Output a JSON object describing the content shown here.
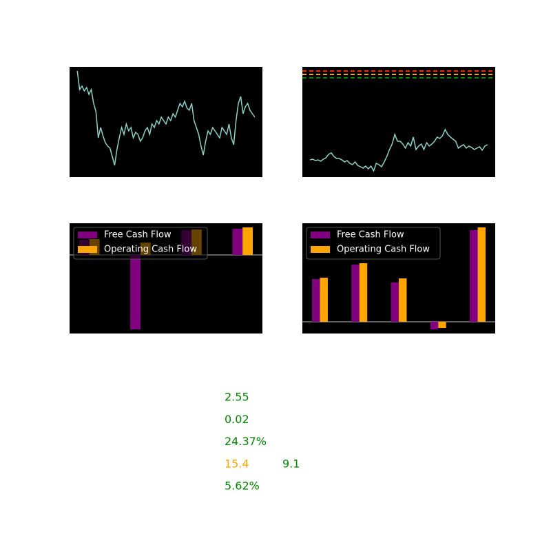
{
  "chart_data": [
    {
      "type": "line",
      "line_color": "#8dd3c7",
      "ylim": [
        0,
        160
      ],
      "values": [
        154,
        127,
        132,
        125,
        130,
        120,
        127,
        107,
        95,
        57,
        72,
        60,
        50,
        45,
        42,
        30,
        17,
        40,
        57,
        72,
        62,
        77,
        67,
        72,
        57,
        65,
        62,
        52,
        57,
        67,
        72,
        62,
        77,
        72,
        82,
        77,
        87,
        82,
        77,
        87,
        82,
        92,
        87,
        97,
        107,
        102,
        110,
        100,
        97,
        107,
        82,
        72,
        62,
        45,
        32,
        52,
        67,
        62,
        72,
        67,
        62,
        57,
        72,
        67,
        62,
        77,
        57,
        47,
        82,
        107,
        117,
        92,
        102,
        107,
        97,
        92,
        87
      ]
    },
    {
      "type": "line",
      "line_color": "#8dd3c7",
      "ylim": [
        0,
        160
      ],
      "hlines": [
        {
          "value": 154,
          "color": "#ff2a00"
        },
        {
          "value": 149,
          "color": "#ffa500"
        },
        {
          "value": 144,
          "color": "#008000"
        }
      ],
      "values": [
        25,
        26,
        24,
        25,
        23,
        26,
        28,
        33,
        35,
        30,
        27,
        27,
        25,
        22,
        24,
        20,
        18,
        22,
        17,
        15,
        13,
        16,
        12,
        16,
        9,
        20,
        18,
        15,
        22,
        30,
        40,
        48,
        62,
        52,
        52,
        48,
        42,
        50,
        45,
        58,
        40,
        45,
        48,
        40,
        50,
        45,
        48,
        52,
        58,
        56,
        60,
        69,
        62,
        58,
        55,
        52,
        42,
        45,
        47,
        42,
        45,
        43,
        40,
        42,
        44,
        39,
        45,
        47
      ]
    },
    {
      "type": "bar",
      "ylim": [
        -114,
        46
      ],
      "legend": "upper left",
      "categories": [
        null,
        null,
        null,
        null
      ],
      "series": [
        {
          "name": "Free Cash Flow",
          "color": "#800080",
          "values": [
            22,
            -108,
            36,
            38
          ]
        },
        {
          "name": "Operating Cash Flow",
          "color": "#ffa500",
          "values": [
            23,
            18,
            37,
            40
          ]
        }
      ]
    },
    {
      "type": "bar",
      "ylim": [
        -17,
        143
      ],
      "legend": "upper left",
      "categories": [
        null,
        null,
        null,
        null,
        null
      ],
      "series": [
        {
          "name": "Free Cash Flow",
          "color": "#800080",
          "values": [
            62,
            83,
            57,
            -11,
            133
          ]
        },
        {
          "name": "Operating Cash Flow",
          "color": "#ffa500",
          "values": [
            64,
            85,
            63,
            -9,
            137
          ]
        }
      ]
    }
  ],
  "metrics": [
    [
      {
        "text": "2.55",
        "color": "#008000"
      }
    ],
    [
      {
        "text": "0.02",
        "color": "#008000"
      }
    ],
    [
      {
        "text": "24.37%",
        "color": "#008000"
      }
    ],
    [
      {
        "text": "15.4",
        "color": "#ffa500"
      },
      {
        "text": "9.1",
        "color": "#008000"
      }
    ],
    [
      {
        "text": "5.62%",
        "color": "#008000"
      }
    ]
  ]
}
